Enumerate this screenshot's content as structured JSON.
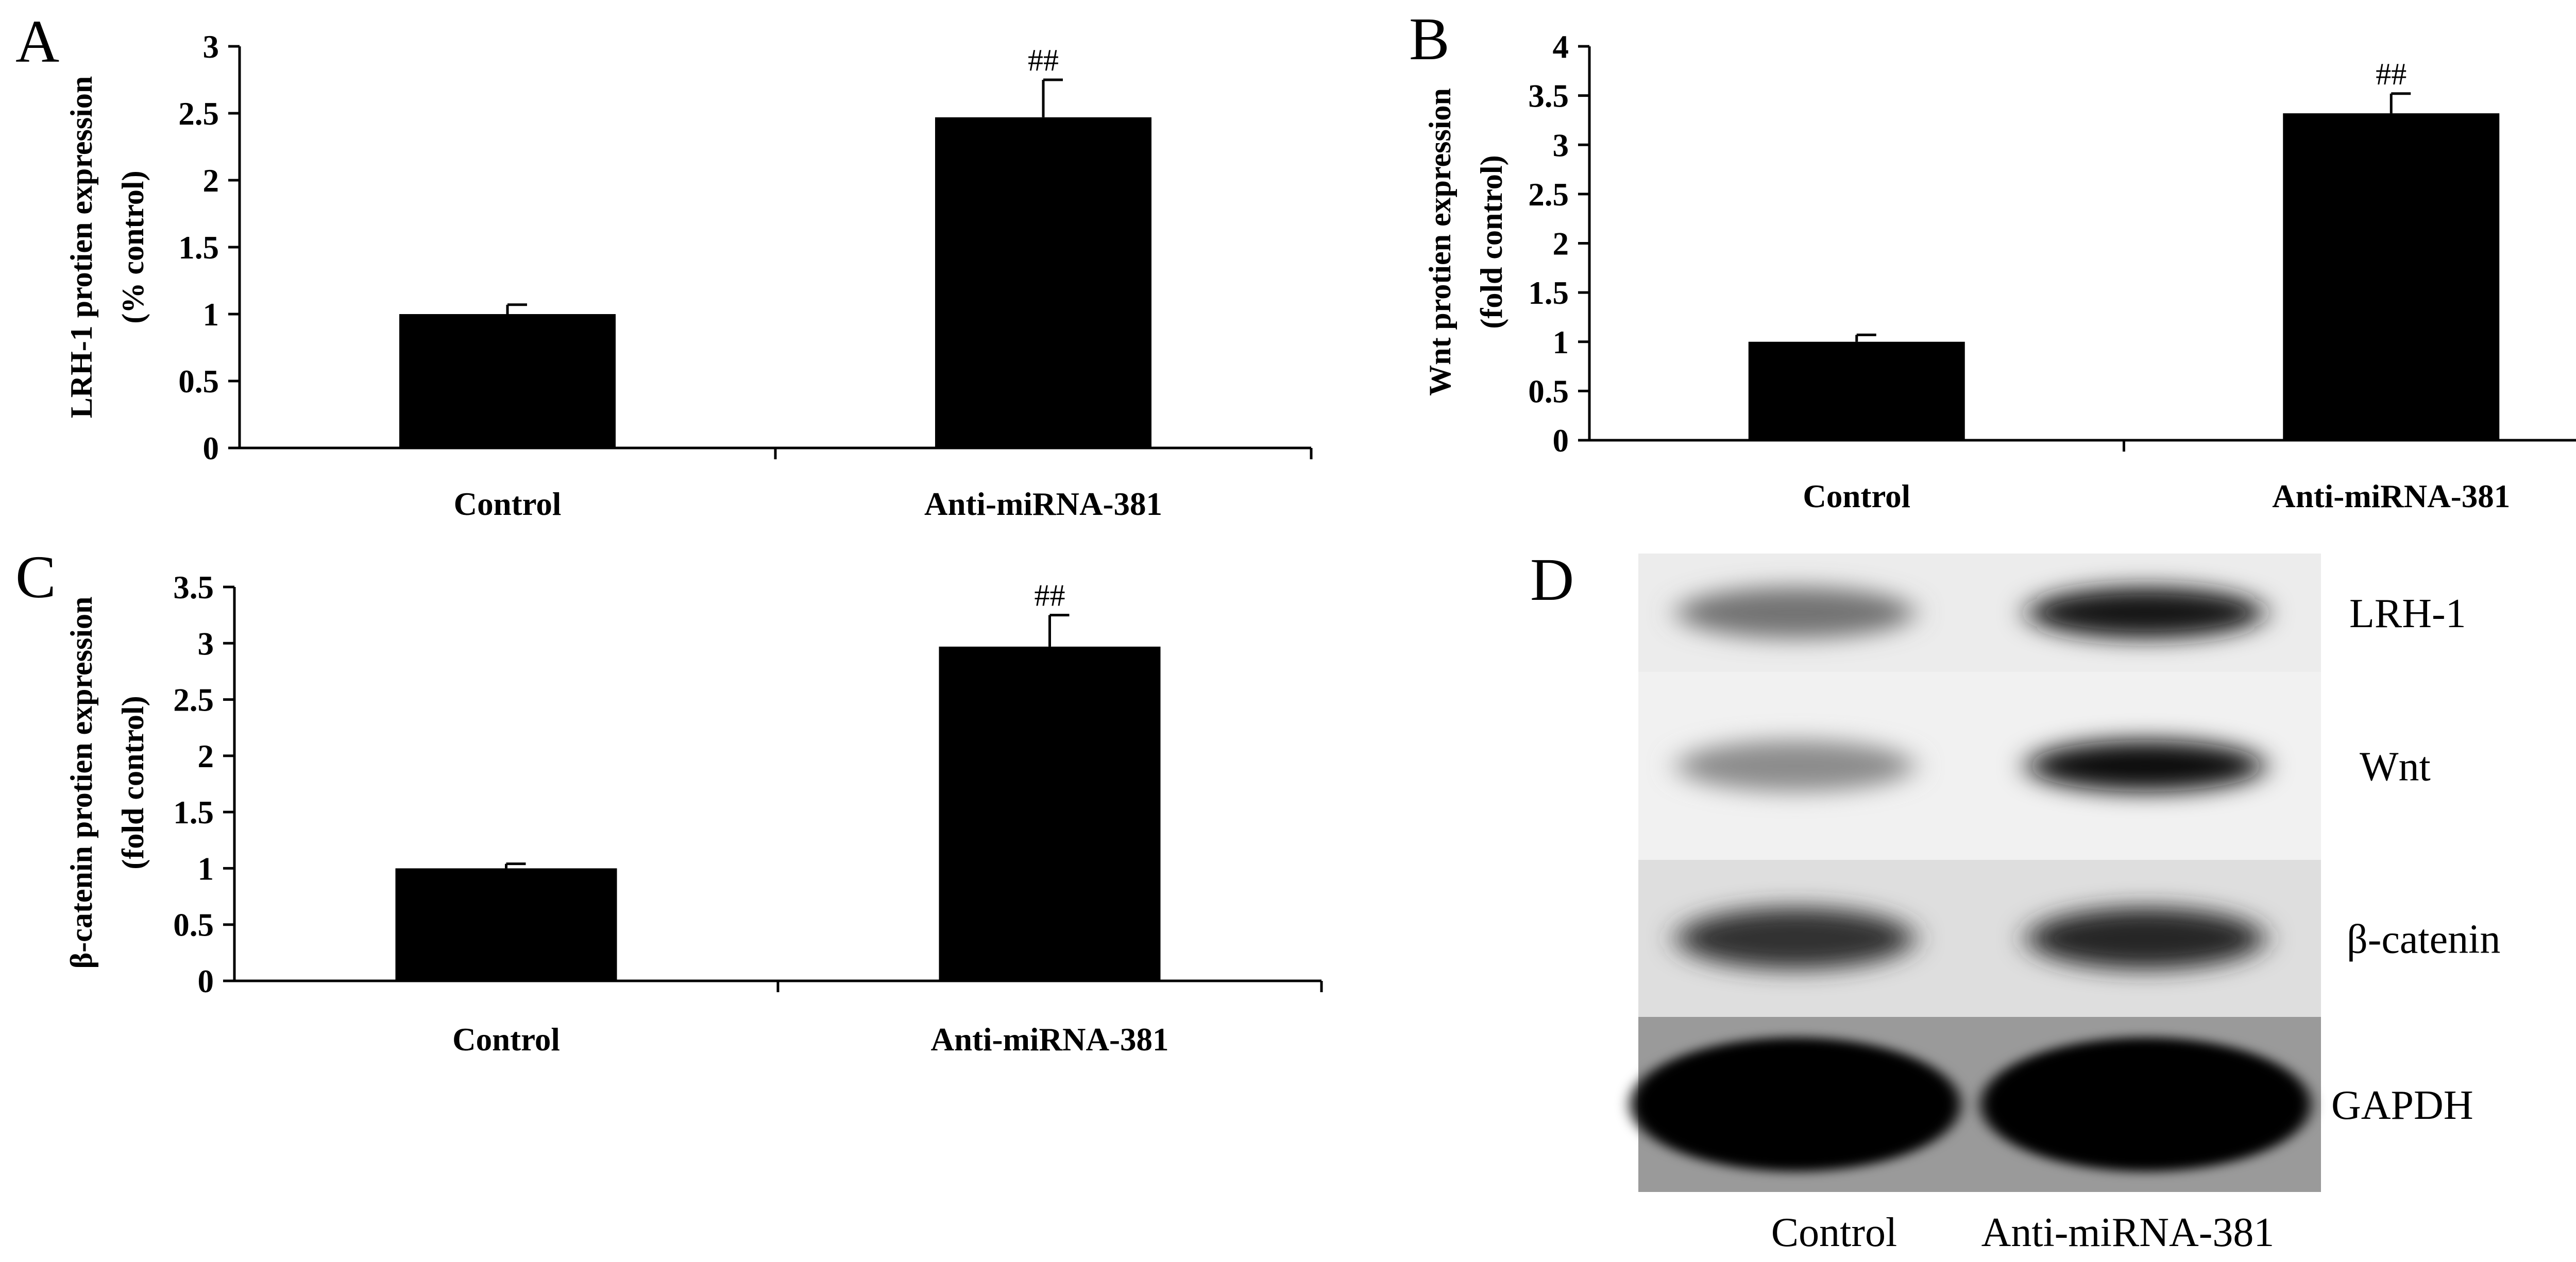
{
  "panel_letters": [
    "A",
    "B",
    "C",
    "D"
  ],
  "chart_data": [
    {
      "type": "bar",
      "panel": "A",
      "categories": [
        "Control",
        "Anti-miRNA-381"
      ],
      "values": [
        1.0,
        2.47
      ],
      "errors": [
        0.07,
        0.28
      ],
      "annotations": [
        "",
        "##"
      ],
      "ylabel_lines": [
        "LRH-1 protien expression",
        "(% control)"
      ],
      "ylim": [
        0,
        3
      ],
      "yticks": [
        "0",
        "0.5",
        "1",
        "1.5",
        "2",
        "2.5",
        "3"
      ],
      "bar_color": "#000000"
    },
    {
      "type": "bar",
      "panel": "B",
      "categories": [
        "Control",
        "Anti-miRNA-381"
      ],
      "values": [
        1.0,
        3.32
      ],
      "errors": [
        0.07,
        0.2
      ],
      "annotations": [
        "",
        "##"
      ],
      "ylabel_lines": [
        "Wnt protien expression",
        "(fold control)"
      ],
      "ylim": [
        0,
        4
      ],
      "yticks": [
        "0",
        "0.5",
        "1",
        "1.5",
        "2",
        "2.5",
        "3",
        "3.5",
        "4"
      ],
      "bar_color": "#000000"
    },
    {
      "type": "bar",
      "panel": "C",
      "categories": [
        "Control",
        "Anti-miRNA-381"
      ],
      "values": [
        1.0,
        2.97
      ],
      "errors": [
        0.04,
        0.28
      ],
      "annotations": [
        "",
        "##"
      ],
      "ylabel_lines": [
        "β-catenin protien expression",
        "(fold control)"
      ],
      "ylim": [
        0,
        3.5
      ],
      "yticks": [
        "0",
        "0.5",
        "1",
        "1.5",
        "2",
        "2.5",
        "3",
        "3.5"
      ],
      "bar_color": "#000000"
    }
  ],
  "blot": {
    "rows": [
      {
        "label": "LRH-1",
        "band_intensity": [
          0.55,
          0.92
        ]
      },
      {
        "label": "Wnt",
        "band_intensity": [
          0.45,
          0.95
        ]
      },
      {
        "label": "β-catenin",
        "band_intensity": [
          0.8,
          0.85
        ]
      },
      {
        "label": "GAPDH",
        "band_intensity": [
          1.0,
          1.0
        ]
      }
    ],
    "lane_labels": [
      "Control",
      "Anti-miRNA-381"
    ]
  }
}
